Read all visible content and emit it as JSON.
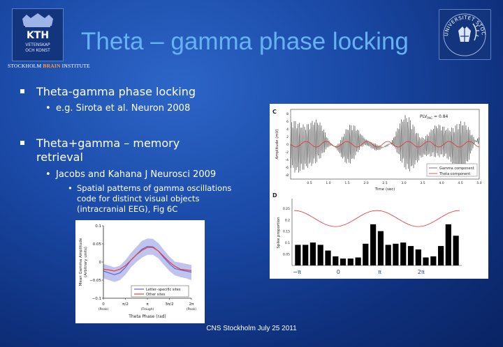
{
  "title": "Theta – gamma phase locking",
  "institute": {
    "prefix": "STOCKHOLM",
    "brain": "BRAIN",
    "suffix": "INSTITUTE"
  },
  "logos": {
    "kth": {
      "lines": [
        "KTH",
        "VETENSKAP",
        "OCH KONST"
      ]
    },
    "su": {
      "arc_text": "UNIVERSITET STOCKHOLMS"
    }
  },
  "bullets": [
    {
      "text": "Theta-gamma phase locking",
      "sub": [
        {
          "text": "e.g. Sirota et al. Neuron 2008"
        }
      ]
    },
    {
      "text_lines": [
        "Theta+gamma – memory",
        "retrieval"
      ],
      "sub": [
        {
          "text": "Jacobs and Kahana J Neurosci 2009",
          "sub": [
            {
              "lines": [
                "Spatial patterns of gamma oscillations",
                "code for distinct visual objects",
                "(intracranial EEG), Fig 6C"
              ]
            }
          ]
        }
      ]
    }
  ],
  "footer": "CNS Stockholm July 25 2011",
  "fig_left": {
    "ylabel": [
      "Mean Gamma Amplitude",
      "(Arbitrary units)"
    ],
    "xlabel": "Theta Phase (rad)",
    "xticks": [
      "0",
      "π/2",
      "π",
      "3π/2",
      "2π"
    ],
    "xtick_sub": [
      "(Peak)",
      "",
      "(Trough)",
      "",
      "(Peak)"
    ],
    "yticks": [
      "0.1",
      "0.05",
      "0",
      "−0.05",
      "−0.1"
    ],
    "legend": [
      "Letter–specific sites",
      "Other sites"
    ],
    "colors": {
      "specific": "#5a67d8",
      "other": "#e53e3e",
      "band": "#b4b8ea"
    }
  },
  "fig_right": {
    "panel_c_label": "C",
    "panel_d_label": "D",
    "plv_label": "PLV",
    "plv_sub": "PAC",
    "plv_value": "= 0.84",
    "c_ylabel": "Amplitude (mV)",
    "c_xlabel": "Time (sec)",
    "c_xticks": [
      "0.5",
      "1.0",
      "1.5",
      "2.0",
      "2.5",
      "3.0",
      "3.5",
      "4.0",
      "4.5",
      "5.0"
    ],
    "c_yticks": [
      "8",
      "6",
      "4",
      "2",
      "0",
      "-2",
      "-4",
      "-6",
      "-8"
    ],
    "c_legend": [
      "Gamma component",
      "Theta component"
    ],
    "d_ylabel": "Spike proportion",
    "d_yticks": [
      "0.25",
      "0.2",
      "0.15",
      "0.1",
      "0.05"
    ],
    "d_xticks": [
      "−π",
      "0",
      "π",
      "2π"
    ]
  },
  "chart_data": [
    {
      "type": "line",
      "title": "",
      "xlabel": "Theta Phase (rad)",
      "ylabel": "Mean Gamma Amplitude (Arbitrary units)",
      "xlim": [
        0,
        6.2832
      ],
      "ylim": [
        -0.1,
        0.1
      ],
      "x": [
        0,
        0.3927,
        0.7854,
        1.1781,
        1.5708,
        1.9635,
        2.3562,
        2.7489,
        3.1416,
        3.5343,
        3.927,
        4.3197,
        4.7124,
        5.1051,
        5.4978,
        5.8905,
        6.2832
      ],
      "series": [
        {
          "name": "Letter–specific sites",
          "values": [
            -0.025,
            -0.03,
            -0.035,
            -0.03,
            -0.015,
            0.005,
            0.02,
            0.035,
            0.043,
            0.042,
            0.03,
            0.012,
            -0.005,
            -0.018,
            -0.022,
            -0.025,
            -0.028
          ]
        },
        {
          "name": "Other sites",
          "values": [
            -0.02,
            -0.022,
            -0.025,
            -0.02,
            -0.01,
            0.005,
            0.02,
            0.032,
            0.04,
            0.04,
            0.03,
            0.015,
            0.0,
            -0.012,
            -0.02,
            -0.022,
            -0.024
          ]
        }
      ],
      "band_low": [
        -0.045,
        -0.05,
        -0.055,
        -0.05,
        -0.035,
        -0.015,
        0.0,
        0.012,
        0.02,
        0.02,
        0.01,
        -0.008,
        -0.025,
        -0.037,
        -0.042,
        -0.045,
        -0.05
      ],
      "band_high": [
        -0.005,
        -0.01,
        -0.015,
        -0.01,
        0.005,
        0.025,
        0.042,
        0.058,
        0.065,
        0.064,
        0.052,
        0.033,
        0.015,
        0.001,
        -0.002,
        -0.005,
        -0.008
      ]
    },
    {
      "type": "bar",
      "title": "",
      "ylabel": "Spike proportion",
      "ylim": [
        0,
        0.28
      ],
      "xlim_phase": [
        -3.1416,
        9.4248
      ],
      "values": [
        0.09,
        0.09,
        0.1,
        0.09,
        0.065,
        0.04,
        0.03,
        0.03,
        0.035,
        0.095,
        0.18,
        0.15,
        0.09,
        0.095,
        0.1,
        0.085,
        0.07,
        0.035,
        0.04,
        0.085,
        0.18,
        0.13
      ],
      "overlay_cosine": {
        "center": 0.205,
        "amplitude": 0.035
      }
    }
  ]
}
